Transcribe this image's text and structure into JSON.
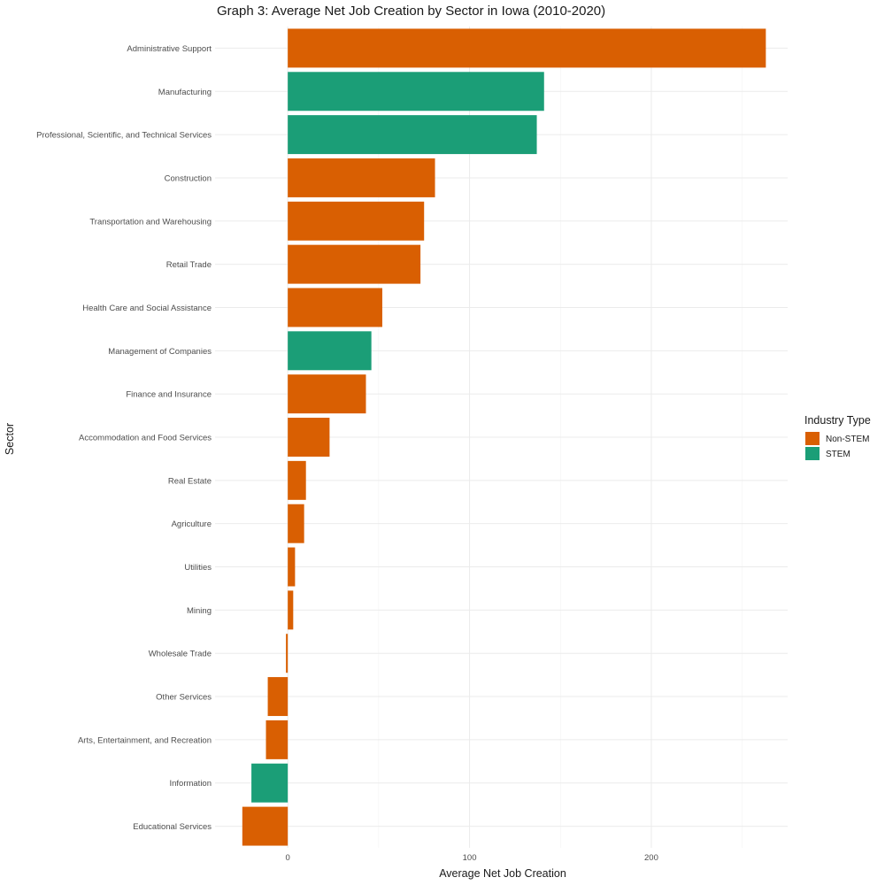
{
  "chart_data": {
    "type": "bar",
    "orientation": "horizontal",
    "title": "Graph 3: Average Net Job Creation by Sector in Iowa (2010-2020)",
    "xlabel": "Average Net Job Creation",
    "ylabel": "Sector",
    "xlim": [
      -40,
      275
    ],
    "x_ticks": [
      0,
      100,
      200
    ],
    "grid": true,
    "legend": {
      "title": "Industry Type",
      "position": "right",
      "entries": [
        {
          "label": "Non-STEM",
          "color": "#D95F02"
        },
        {
          "label": "STEM",
          "color": "#1B9E77"
        }
      ]
    },
    "categories": [
      "Administrative Support",
      "Manufacturing",
      "Professional, Scientific, and Technical Services",
      "Construction",
      "Transportation and Warehousing",
      "Retail Trade",
      "Health Care and Social Assistance",
      "Management of Companies",
      "Finance and Insurance",
      "Accommodation and Food Services",
      "Real Estate",
      "Agriculture",
      "Utilities",
      "Mining",
      "Wholesale Trade",
      "Other Services",
      "Arts, Entertainment, and Recreation",
      "Information",
      "Educational Services"
    ],
    "values": [
      263,
      141,
      137,
      81,
      75,
      73,
      52,
      46,
      43,
      23,
      10,
      9,
      4,
      3,
      -1,
      -11,
      -12,
      -20,
      -25
    ],
    "industry_type": [
      "Non-STEM",
      "STEM",
      "STEM",
      "Non-STEM",
      "Non-STEM",
      "Non-STEM",
      "Non-STEM",
      "STEM",
      "Non-STEM",
      "Non-STEM",
      "Non-STEM",
      "Non-STEM",
      "Non-STEM",
      "Non-STEM",
      "Non-STEM",
      "Non-STEM",
      "Non-STEM",
      "STEM",
      "Non-STEM"
    ]
  }
}
